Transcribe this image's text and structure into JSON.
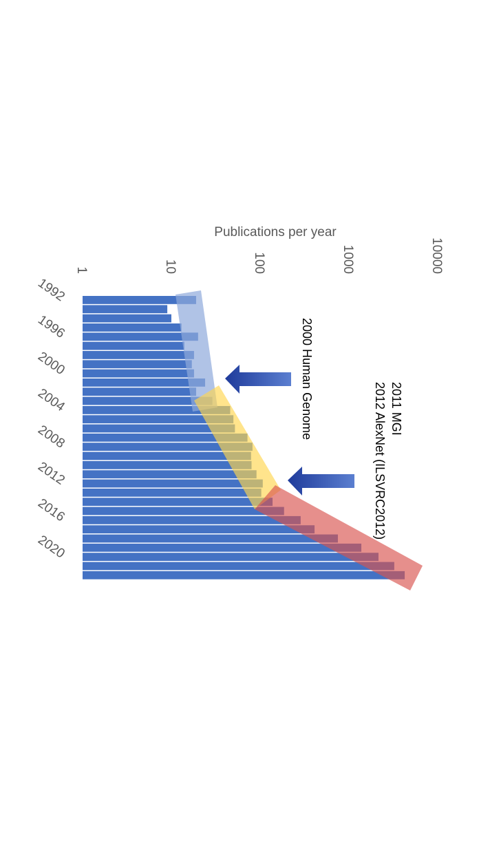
{
  "chart_data": {
    "type": "bar",
    "orientation": "horizontal",
    "log_scale": true,
    "axis_label": "Publications per year",
    "categories": [
      "1992",
      null,
      null,
      null,
      "1996",
      null,
      null,
      null,
      "2000",
      null,
      null,
      null,
      "2004",
      null,
      null,
      null,
      "2008",
      null,
      null,
      null,
      "2012",
      null,
      null,
      null,
      "2016",
      null,
      null,
      null,
      "2020",
      null,
      null
    ],
    "values": [
      19,
      9,
      10,
      13,
      20,
      14,
      18,
      17,
      18,
      24,
      19,
      29,
      46,
      50,
      52,
      72,
      82,
      79,
      80,
      91,
      107,
      103,
      138,
      186,
      286,
      410,
      751,
      1380,
      2153,
      3240,
      4250
    ],
    "color": "#4472c4",
    "xlim": [
      1,
      10000
    ],
    "xticks": [
      1,
      10,
      100,
      1000,
      10000
    ],
    "annotations": [
      "2000 Human Genome",
      "2011 MGI",
      "2012 AlexNet (ILSVRC2012)"
    ]
  }
}
